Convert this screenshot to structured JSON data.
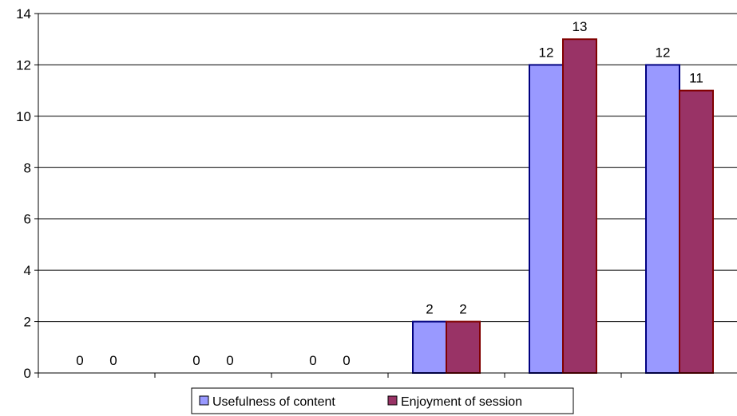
{
  "chart_data": {
    "type": "bar",
    "title": "",
    "xlabel": "",
    "ylabel": "",
    "categories": [
      "",
      "",
      "",
      "",
      "",
      ""
    ],
    "ylim": [
      0,
      14
    ],
    "yticks": [
      0,
      2,
      4,
      6,
      8,
      10,
      12,
      14
    ],
    "grid": true,
    "legend_position": "bottom",
    "series": [
      {
        "name": "Usefulness of content",
        "color": "#9999FF",
        "values": [
          0,
          0,
          0,
          2,
          12,
          12
        ]
      },
      {
        "name": "Enjoyment of session",
        "color": "#993366",
        "values": [
          0,
          0,
          0,
          2,
          13,
          11
        ]
      }
    ]
  }
}
